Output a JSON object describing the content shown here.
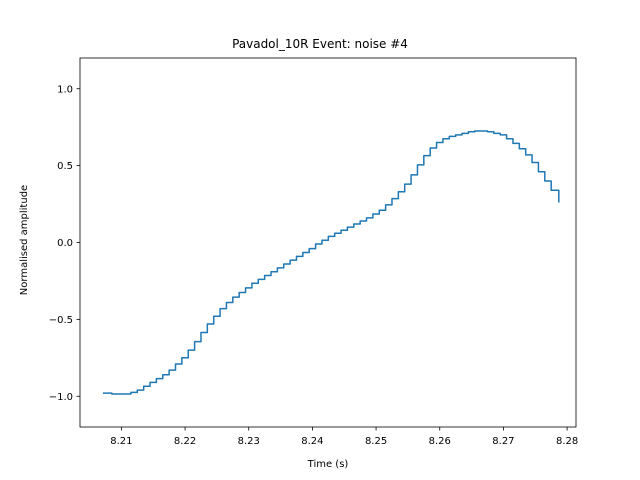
{
  "chart_data": {
    "type": "line",
    "title": "Pavadol_10R Event: noise #4",
    "xlabel": "Time (s)",
    "ylabel": "Normalised amplitude",
    "xlim": [
      8.2035,
      8.2814
    ],
    "ylim": [
      -1.2,
      1.2
    ],
    "xticks": [
      8.21,
      8.22,
      8.23,
      8.24,
      8.25,
      8.26,
      8.27,
      8.28
    ],
    "xtick_labels": [
      "8.21",
      "8.22",
      "8.23",
      "8.24",
      "8.25",
      "8.26",
      "8.27",
      "8.28"
    ],
    "yticks": [
      -1.0,
      -0.5,
      0.0,
      0.5,
      1.0
    ],
    "ytick_labels": [
      "−1.0",
      "−0.5",
      "0.0",
      "0.5",
      "1.0"
    ],
    "grid": false,
    "color": "#1f77b4",
    "series": [
      {
        "x": [
          8.2071,
          8.2085,
          8.2095,
          8.2105,
          8.2115,
          8.2125,
          8.2135,
          8.2145,
          8.2155,
          8.2165,
          8.2175,
          8.2185,
          8.2195,
          8.2205,
          8.2215,
          8.2225,
          8.2235,
          8.2245,
          8.2255,
          8.2265,
          8.2275,
          8.2285,
          8.2295,
          8.2305,
          8.2315,
          8.2325,
          8.2335,
          8.2345,
          8.2355,
          8.2365,
          8.2375,
          8.2385,
          8.2395,
          8.2405,
          8.2415,
          8.2425,
          8.2435,
          8.2445,
          8.2455,
          8.2465,
          8.2475,
          8.2485,
          8.2495,
          8.2505,
          8.2515,
          8.2525,
          8.2535,
          8.2545,
          8.2555,
          8.2565,
          8.2575,
          8.2585,
          8.2595,
          8.2605,
          8.2615,
          8.2625,
          8.2635,
          8.2645,
          8.2655,
          8.2665,
          8.2675,
          8.2685,
          8.2695,
          8.2705,
          8.2715,
          8.2725,
          8.2735,
          8.2745,
          8.2755,
          8.2765,
          8.2775,
          8.2787
        ],
        "y": [
          -0.98,
          -0.985,
          -0.985,
          -0.985,
          -0.975,
          -0.96,
          -0.935,
          -0.91,
          -0.885,
          -0.86,
          -0.83,
          -0.79,
          -0.75,
          -0.7,
          -0.645,
          -0.585,
          -0.53,
          -0.48,
          -0.43,
          -0.39,
          -0.355,
          -0.325,
          -0.295,
          -0.265,
          -0.24,
          -0.215,
          -0.19,
          -0.165,
          -0.14,
          -0.115,
          -0.09,
          -0.065,
          -0.04,
          -0.01,
          0.015,
          0.04,
          0.06,
          0.08,
          0.1,
          0.12,
          0.14,
          0.16,
          0.185,
          0.21,
          0.245,
          0.285,
          0.33,
          0.38,
          0.44,
          0.505,
          0.565,
          0.615,
          0.65,
          0.675,
          0.69,
          0.7,
          0.71,
          0.72,
          0.725,
          0.725,
          0.72,
          0.71,
          0.7,
          0.675,
          0.645,
          0.61,
          0.57,
          0.52,
          0.46,
          0.4,
          0.34,
          0.26
        ]
      }
    ]
  }
}
